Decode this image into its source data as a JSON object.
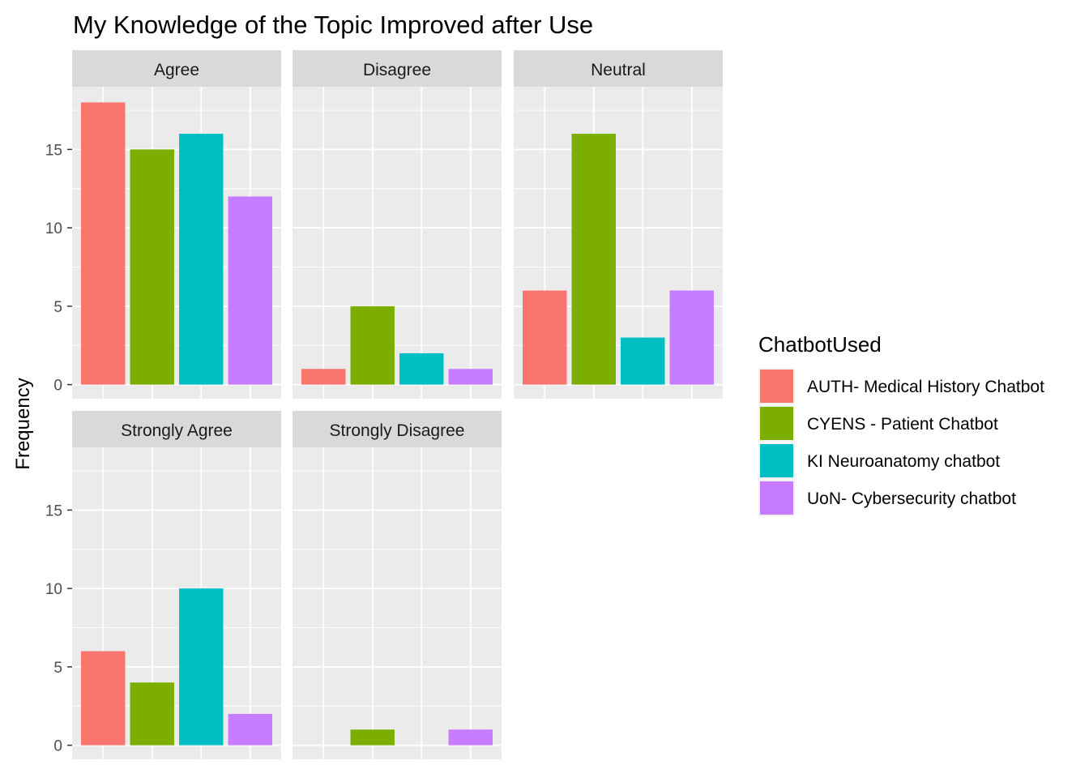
{
  "chart_data": {
    "type": "bar",
    "title": "My Knowledge of the Topic Improved after Use",
    "ylabel": "Frequency",
    "xlabel": "",
    "ylim": [
      0,
      19
    ],
    "yticks": [
      0,
      5,
      10,
      15
    ],
    "legend": {
      "title": "ChatbotUsed",
      "placement": "right"
    },
    "categories": [
      "AUTH- Medical History Chatbot",
      "CYENS - Patient Chatbot",
      "KI Neuroanatomy chatbot",
      "UoN- Cybersecurity chatbot"
    ],
    "colors": [
      "#F8766D",
      "#7CAE00",
      "#00BFC4",
      "#C77CFF"
    ],
    "panels": [
      {
        "name": "Agree",
        "values": [
          18,
          15,
          16,
          12
        ]
      },
      {
        "name": "Disagree",
        "values": [
          1,
          5,
          2,
          1
        ]
      },
      {
        "name": "Neutral",
        "values": [
          6,
          16,
          3,
          6
        ]
      },
      {
        "name": "Strongly Agree",
        "values": [
          6,
          4,
          10,
          2
        ]
      },
      {
        "name": "Strongly Disagree",
        "values": [
          0,
          1,
          0,
          1
        ]
      }
    ],
    "grid": true
  }
}
